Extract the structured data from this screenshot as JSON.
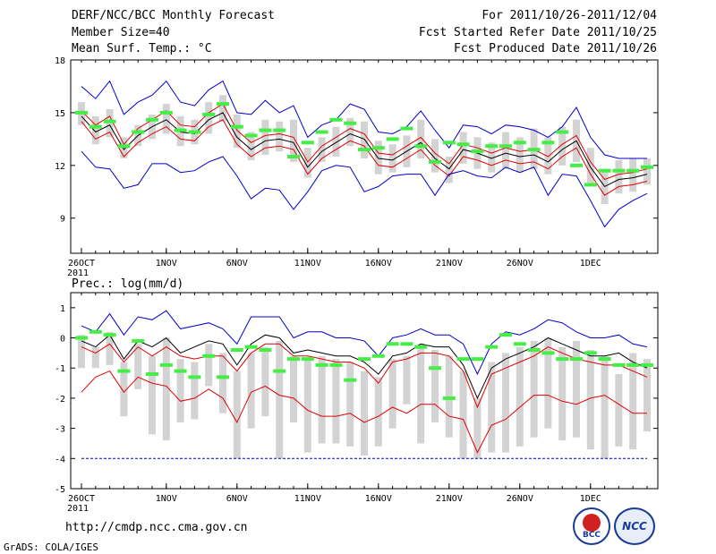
{
  "header": {
    "title": "DERF/NCC/BCC Monthly Forecast",
    "member": "Member Size=40",
    "variable": "Mean Surf. Temp.: °C",
    "period": "For 2011/10/26-2011/12/04",
    "refer": "Fcst Started Refer Date 2011/10/25",
    "produced": "Fcst Produced Date 2011/10/26"
  },
  "x_ticks": [
    {
      "idx": 0,
      "label": "26OCT",
      "sub": "2011"
    },
    {
      "idx": 6,
      "label": "1NOV"
    },
    {
      "idx": 11,
      "label": "6NOV"
    },
    {
      "idx": 16,
      "label": "11NOV"
    },
    {
      "idx": 21,
      "label": "16NOV"
    },
    {
      "idx": 26,
      "label": "21NOV"
    },
    {
      "idx": 31,
      "label": "26NOV"
    },
    {
      "idx": 36,
      "label": "1DEC"
    }
  ],
  "chart_data": [
    {
      "type": "line",
      "title": "Mean Surf. Temp.: °C",
      "days": 40,
      "ylim": [
        7,
        18
      ],
      "yticks": [
        9,
        12,
        15,
        18
      ],
      "series": [
        {
          "name": "ensemble-mean",
          "color": "#000000",
          "values": [
            14.8,
            13.9,
            14.3,
            12.9,
            13.7,
            14.2,
            14.6,
            13.9,
            13.8,
            14.6,
            15.0,
            13.6,
            12.9,
            13.4,
            13.5,
            13.3,
            11.9,
            12.8,
            13.3,
            13.8,
            13.5,
            12.4,
            12.3,
            12.8,
            13.3,
            12.4,
            11.8,
            12.9,
            12.7,
            12.4,
            12.7,
            12.5,
            12.6,
            12.2,
            12.9,
            13.4,
            11.9,
            10.8,
            11.2,
            11.3,
            11.5
          ]
        },
        {
          "name": "upper-red",
          "color": "#e00000",
          "values": [
            15.1,
            14.3,
            14.8,
            13.2,
            14.1,
            14.6,
            15.1,
            14.3,
            14.2,
            15.0,
            15.5,
            14.0,
            13.3,
            13.7,
            13.8,
            13.6,
            12.2,
            13.1,
            13.6,
            14.1,
            13.8,
            12.7,
            12.6,
            13.1,
            13.6,
            12.7,
            12.1,
            13.2,
            13.0,
            12.7,
            13.0,
            12.8,
            12.9,
            12.5,
            13.2,
            13.7,
            12.2,
            11.2,
            11.5,
            11.6,
            11.8
          ]
        },
        {
          "name": "lower-red",
          "color": "#e00000",
          "values": [
            14.5,
            13.5,
            13.9,
            12.5,
            13.3,
            13.8,
            14.2,
            13.5,
            13.4,
            14.2,
            14.6,
            13.2,
            12.5,
            13.0,
            13.1,
            12.9,
            11.5,
            12.4,
            12.9,
            13.4,
            13.1,
            12.0,
            11.9,
            12.4,
            12.9,
            12.0,
            11.4,
            12.5,
            12.3,
            12.0,
            12.3,
            12.1,
            12.2,
            11.8,
            12.5,
            13.0,
            11.5,
            10.3,
            10.8,
            10.9,
            11.1
          ]
        },
        {
          "name": "upper-blue",
          "color": "#0000cc",
          "values": [
            16.5,
            15.8,
            16.8,
            14.9,
            15.6,
            16.0,
            16.8,
            15.6,
            15.4,
            16.3,
            16.8,
            15.0,
            14.9,
            15.7,
            15.0,
            15.4,
            13.6,
            14.3,
            14.6,
            15.5,
            15.2,
            13.9,
            13.8,
            14.2,
            15.1,
            14.0,
            13.0,
            14.3,
            14.2,
            13.8,
            14.3,
            14.2,
            14.0,
            13.6,
            14.2,
            15.3,
            13.6,
            12.6,
            12.4,
            12.4,
            12.4
          ]
        },
        {
          "name": "lower-blue",
          "color": "#0000cc",
          "values": [
            12.8,
            11.9,
            11.8,
            10.7,
            10.9,
            12.1,
            12.1,
            11.6,
            11.7,
            12.2,
            12.5,
            11.4,
            10.1,
            10.7,
            10.6,
            9.5,
            10.5,
            11.7,
            12.0,
            11.9,
            10.5,
            10.8,
            11.4,
            11.5,
            11.5,
            10.3,
            11.5,
            11.7,
            11.4,
            11.3,
            11.9,
            11.6,
            11.9,
            10.3,
            11.5,
            11.4,
            10.0,
            8.5,
            9.5,
            10.0,
            10.4
          ]
        }
      ],
      "bars": [
        [
          15.6,
          14.3
        ],
        [
          14.8,
          13.2
        ],
        [
          15.2,
          13.6
        ],
        [
          13.6,
          12.4
        ],
        [
          14.3,
          13.1
        ],
        [
          14.9,
          13.5
        ],
        [
          15.5,
          13.8
        ],
        [
          14.8,
          13.1
        ],
        [
          14.6,
          13.2
        ],
        [
          15.6,
          13.8
        ],
        [
          16.0,
          14.5
        ],
        [
          14.9,
          13.0
        ],
        [
          13.9,
          12.3
        ],
        [
          14.6,
          12.6
        ],
        [
          14.5,
          12.8
        ],
        [
          14.6,
          12.2
        ],
        [
          13.0,
          11.3
        ],
        [
          13.6,
          12.2
        ],
        [
          14.2,
          12.5
        ],
        [
          14.7,
          13.1
        ],
        [
          14.5,
          12.4
        ],
        [
          13.4,
          11.5
        ],
        [
          13.2,
          11.6
        ],
        [
          13.7,
          11.9
        ],
        [
          14.6,
          12.4
        ],
        [
          13.5,
          11.6
        ],
        [
          12.5,
          11.0
        ],
        [
          13.9,
          12.1
        ],
        [
          13.6,
          11.8
        ],
        [
          13.3,
          11.6
        ],
        [
          13.9,
          11.8
        ],
        [
          13.6,
          11.6
        ],
        [
          14.1,
          11.8
        ],
        [
          13.6,
          11.5
        ],
        [
          14.2,
          12.0
        ],
        [
          14.6,
          12.2
        ],
        [
          13.0,
          11.0
        ],
        [
          11.8,
          9.8
        ],
        [
          12.3,
          10.4
        ],
        [
          12.4,
          10.5
        ],
        [
          12.4,
          10.9
        ]
      ],
      "markers": [
        15.0,
        14.2,
        14.5,
        13.1,
        13.9,
        14.6,
        15.0,
        14.0,
        13.9,
        14.9,
        15.5,
        14.2,
        13.7,
        14.0,
        14.0,
        12.5,
        13.3,
        13.9,
        14.6,
        14.4,
        12.9,
        13.0,
        13.5,
        14.1,
        13.1,
        12.2,
        13.3,
        13.2,
        12.8,
        13.1,
        13.1,
        13.3,
        12.9,
        13.3,
        13.9,
        12.0,
        10.9,
        11.7,
        11.7,
        11.7,
        11.9
      ]
    },
    {
      "type": "line",
      "title": "Prec.: log(mm/d)",
      "days": 40,
      "ylim": [
        -5,
        1.5
      ],
      "yticks": [
        -5,
        -4,
        -3,
        -2,
        -1,
        0,
        1
      ],
      "series": [
        {
          "name": "ensemble-mean",
          "color": "#000000",
          "values": [
            -0.1,
            -0.3,
            0.1,
            -0.7,
            -0.1,
            -0.3,
            0.0,
            -0.5,
            -0.3,
            -0.1,
            -0.2,
            -0.9,
            -0.2,
            0.1,
            0.0,
            -0.5,
            -0.4,
            -0.5,
            -0.6,
            -0.6,
            -0.8,
            -1.2,
            -0.6,
            -0.5,
            -0.2,
            -0.3,
            -0.3,
            -0.9,
            -2.0,
            -1.0,
            -0.7,
            -0.5,
            -0.3,
            0.0,
            -0.2,
            -0.4,
            -0.6,
            -0.6,
            -0.5,
            -0.8,
            -1.0
          ]
        },
        {
          "name": "upper-red",
          "color": "#e00000",
          "values": [
            -0.3,
            -0.5,
            -0.2,
            -0.8,
            -0.3,
            -0.6,
            -0.3,
            -0.6,
            -0.7,
            -0.6,
            -0.6,
            -1.1,
            -0.5,
            -0.2,
            -0.2,
            -0.6,
            -0.6,
            -0.7,
            -0.8,
            -0.8,
            -1.0,
            -1.5,
            -0.8,
            -0.7,
            -0.5,
            -0.5,
            -0.6,
            -1.1,
            -2.3,
            -1.2,
            -1.0,
            -0.8,
            -0.6,
            -0.3,
            -0.5,
            -0.7,
            -0.8,
            -0.9,
            -0.9,
            -1.1,
            -1.3
          ]
        },
        {
          "name": "lower-red",
          "color": "#e00000",
          "values": [
            -1.8,
            -1.3,
            -1.1,
            -1.8,
            -1.3,
            -1.5,
            -1.6,
            -2.1,
            -2.0,
            -1.7,
            -2.0,
            -2.8,
            -1.8,
            -1.6,
            -1.9,
            -2.0,
            -2.4,
            -2.6,
            -2.6,
            -2.5,
            -2.8,
            -2.6,
            -2.3,
            -2.5,
            -2.2,
            -2.2,
            -2.6,
            -2.7,
            -3.8,
            -2.9,
            -2.7,
            -2.3,
            -1.9,
            -1.9,
            -2.1,
            -2.2,
            -2.0,
            -1.9,
            -2.2,
            -2.5,
            -2.5
          ]
        },
        {
          "name": "upper-blue",
          "color": "#0000cc",
          "values": [
            0.4,
            0.2,
            0.8,
            0.1,
            0.7,
            0.6,
            0.9,
            0.3,
            0.4,
            0.5,
            0.3,
            -0.2,
            0.7,
            0.7,
            0.7,
            0.0,
            0.2,
            0.2,
            0.0,
            0.0,
            -0.1,
            -0.6,
            0.0,
            0.1,
            0.3,
            0.1,
            0.1,
            -0.2,
            -1.2,
            -0.2,
            0.2,
            0.1,
            0.3,
            0.6,
            0.5,
            0.2,
            0.0,
            0.0,
            0.1,
            -0.2,
            -0.3
          ]
        },
        {
          "name": "lower-blue",
          "color": "#0000cc",
          "values": [
            -4,
            -4,
            -4,
            -4,
            -4,
            -4,
            -4,
            -4,
            -4,
            -4,
            -4,
            -4,
            -4,
            -4,
            -4,
            -4,
            -4,
            -4,
            -4,
            -4,
            -4,
            -4,
            -4,
            -4,
            -4,
            -4,
            -4,
            -4,
            -4,
            -4,
            -4,
            -4,
            -4,
            -4,
            -4,
            -4,
            -4,
            -4,
            -4,
            -4,
            -4
          ]
        }
      ],
      "bars": [
        [
          0.1,
          -1.0
        ],
        [
          -0.3,
          -1.0
        ],
        [
          0.2,
          -0.9
        ],
        [
          -0.8,
          -2.6
        ],
        [
          -0.2,
          -1.7
        ],
        [
          -0.6,
          -3.2
        ],
        [
          0.0,
          -3.4
        ],
        [
          -0.7,
          -2.8
        ],
        [
          -0.8,
          -2.7
        ],
        [
          -0.2,
          -1.6
        ],
        [
          -0.5,
          -2.5
        ],
        [
          -1.1,
          -4.0
        ],
        [
          -0.5,
          -3.0
        ],
        [
          -0.3,
          -2.6
        ],
        [
          -0.1,
          -4.0
        ],
        [
          -0.6,
          -2.8
        ],
        [
          -0.7,
          -3.8
        ],
        [
          -0.6,
          -3.5
        ],
        [
          -0.7,
          -3.5
        ],
        [
          -0.8,
          -3.6
        ],
        [
          -1.1,
          -3.9
        ],
        [
          -1.3,
          -3.6
        ],
        [
          -0.7,
          -3.0
        ],
        [
          -0.6,
          -2.2
        ],
        [
          -0.2,
          -3.5
        ],
        [
          -0.4,
          -2.8
        ],
        [
          -0.6,
          -3.3
        ],
        [
          -1.1,
          -4.0
        ],
        [
          -2.0,
          -4.0
        ],
        [
          -0.8,
          -3.8
        ],
        [
          -0.5,
          -3.8
        ],
        [
          -0.3,
          -3.6
        ],
        [
          -0.1,
          -3.3
        ],
        [
          0.0,
          -3.0
        ],
        [
          -0.3,
          -3.4
        ],
        [
          -0.1,
          -3.3
        ],
        [
          -0.4,
          -3.7
        ],
        [
          -0.6,
          -4.0
        ],
        [
          -1.2,
          -3.6
        ],
        [
          -0.5,
          -3.7
        ],
        [
          -0.7,
          -3.1
        ]
      ],
      "markers": [
        0.0,
        0.2,
        0.1,
        -1.1,
        -0.1,
        -1.2,
        -0.9,
        -1.1,
        -1.3,
        -0.6,
        -1.3,
        -0.4,
        -0.3,
        -0.4,
        -1.1,
        -0.7,
        -0.7,
        -0.9,
        -0.9,
        -1.4,
        -0.7,
        -0.6,
        -0.2,
        -0.2,
        -0.3,
        -1.0,
        -2.0,
        -0.7,
        -0.7,
        -0.3,
        0.1,
        -0.2,
        -0.4,
        -0.5,
        -0.7,
        -0.7,
        -0.5,
        -0.7,
        -0.9,
        -0.9,
        -0.9
      ]
    }
  ],
  "footer": {
    "url": "http://cmdp.ncc.cma.gov.cn",
    "grads": "GrADS: COLA/IGES",
    "logo_left": "BCC",
    "logo_right": "NCC"
  },
  "colors": {
    "bar": "#d3d3d3",
    "marker": "#44ee44",
    "red": "#e00000",
    "blue": "#0000cc"
  }
}
